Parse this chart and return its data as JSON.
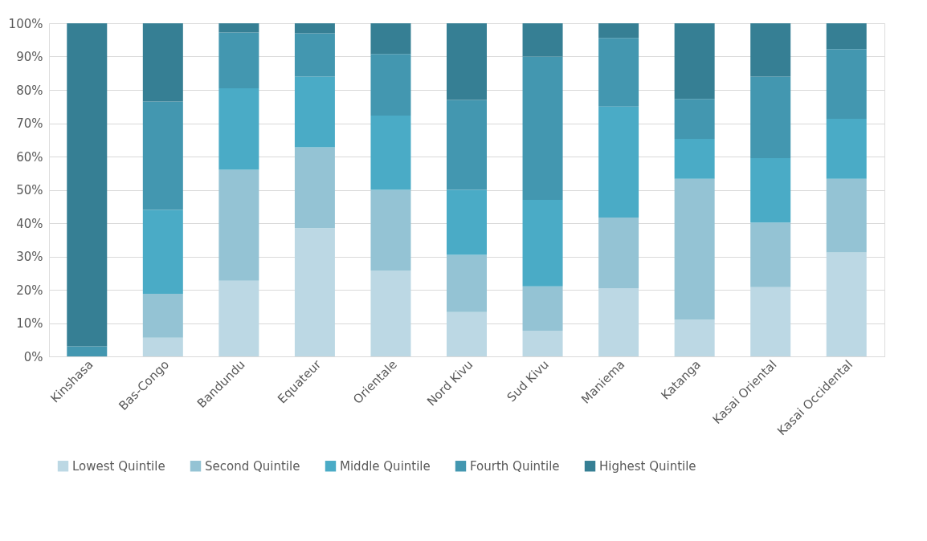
{
  "chart_data": {
    "type": "bar",
    "stacked": true,
    "categories": [
      "Kinshasa",
      "Bas-Congo",
      "Bandundu",
      "Equateur",
      "Orientale",
      "Nord Kivu",
      "Sud Kivu",
      "Maniema",
      "Katanga",
      "Kasai Oriental",
      "Kasai Occidental"
    ],
    "series": [
      {
        "name": "Lowest Quintile",
        "color": "#bcd8e4",
        "values": [
          0,
          5.6,
          22.7,
          38.5,
          25.8,
          13.3,
          7.7,
          20.5,
          11,
          20.8,
          31.2
        ]
      },
      {
        "name": "Second Quintile",
        "color": "#94c3d4",
        "values": [
          0,
          13.2,
          33.3,
          24.3,
          24.2,
          17.2,
          13.3,
          21.2,
          42.3,
          19.4,
          22.1
        ]
      },
      {
        "name": "Middle Quintile",
        "color": "#4aabc6",
        "values": [
          0,
          25.2,
          24.5,
          21.2,
          22.3,
          19.5,
          26,
          33.3,
          12,
          19.3,
          18
        ]
      },
      {
        "name": "Fourth Quintile",
        "color": "#4397b0",
        "values": [
          3,
          32.5,
          16.7,
          13,
          18.5,
          27,
          43,
          20.6,
          12,
          24.5,
          20.9
        ]
      },
      {
        "name": "Highest Quintile",
        "color": "#367f94",
        "values": [
          97,
          23.5,
          2.8,
          3,
          9.2,
          23,
          10,
          4.4,
          22.7,
          16,
          7.8
        ]
      }
    ],
    "ylim": [
      0,
      100
    ],
    "yticks": [
      {
        "value": 0,
        "label": "0%"
      },
      {
        "value": 10,
        "label": "10%"
      },
      {
        "value": 20,
        "label": "20%"
      },
      {
        "value": 30,
        "label": "30%"
      },
      {
        "value": 40,
        "label": "40%"
      },
      {
        "value": 50,
        "label": "50%"
      },
      {
        "value": 60,
        "label": "60%"
      },
      {
        "value": 70,
        "label": "70%"
      },
      {
        "value": 80,
        "label": "80%"
      },
      {
        "value": 90,
        "label": "90%"
      },
      {
        "value": 100,
        "label": "100%"
      }
    ],
    "grid": "y",
    "legend": "bottom"
  }
}
